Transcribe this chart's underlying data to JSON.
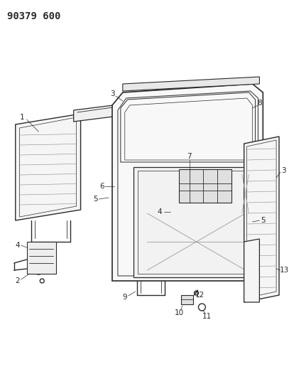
{
  "title": "90379 600",
  "bg": "#ffffff",
  "lc": "#2a2a2a",
  "lw_main": 1.0,
  "lw_thin": 0.6,
  "fig_w": 4.07,
  "fig_h": 5.33,
  "dpi": 100,
  "label_fs": 7.5,
  "title_fs": 10
}
